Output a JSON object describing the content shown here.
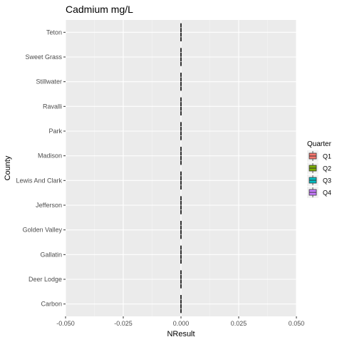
{
  "chart_data": {
    "type": "boxplot",
    "orientation": "horizontal",
    "title": "Cadmium mg/L",
    "xlabel": "NResult",
    "ylabel": "County",
    "xlim": [
      -0.05,
      0.05
    ],
    "x_ticks": [
      "-0.050",
      "-0.025",
      "0.000",
      "0.025",
      "0.050"
    ],
    "x_tick_values": [
      -0.05,
      -0.025,
      0,
      0.025,
      0.05
    ],
    "categories": [
      "Carbon",
      "Deer Lodge",
      "Gallatin",
      "Golden Valley",
      "Jefferson",
      "Lewis And Clark",
      "Madison",
      "Park",
      "Ravalli",
      "Stillwater",
      "Sweet Grass",
      "Teton"
    ],
    "series": [
      {
        "name": "Q1",
        "color": "#F8766D",
        "values": [
          0,
          0,
          0,
          0,
          0,
          0,
          0,
          0,
          0,
          0,
          0,
          0
        ]
      },
      {
        "name": "Q2",
        "color": "#7CAE00",
        "values": [
          0,
          0,
          0,
          0,
          0,
          0,
          0,
          0,
          0,
          0,
          0,
          0
        ]
      },
      {
        "name": "Q3",
        "color": "#00BFC4",
        "values": [
          0,
          0,
          0,
          0,
          0,
          0,
          0,
          0,
          0,
          0,
          0,
          0
        ]
      },
      {
        "name": "Q4",
        "color": "#C77CFF",
        "values": [
          0,
          0,
          0,
          0,
          0,
          0,
          0,
          0,
          0,
          0,
          0,
          0
        ]
      }
    ],
    "legend": {
      "title": "Quarter",
      "position": "right"
    },
    "grid": true
  }
}
